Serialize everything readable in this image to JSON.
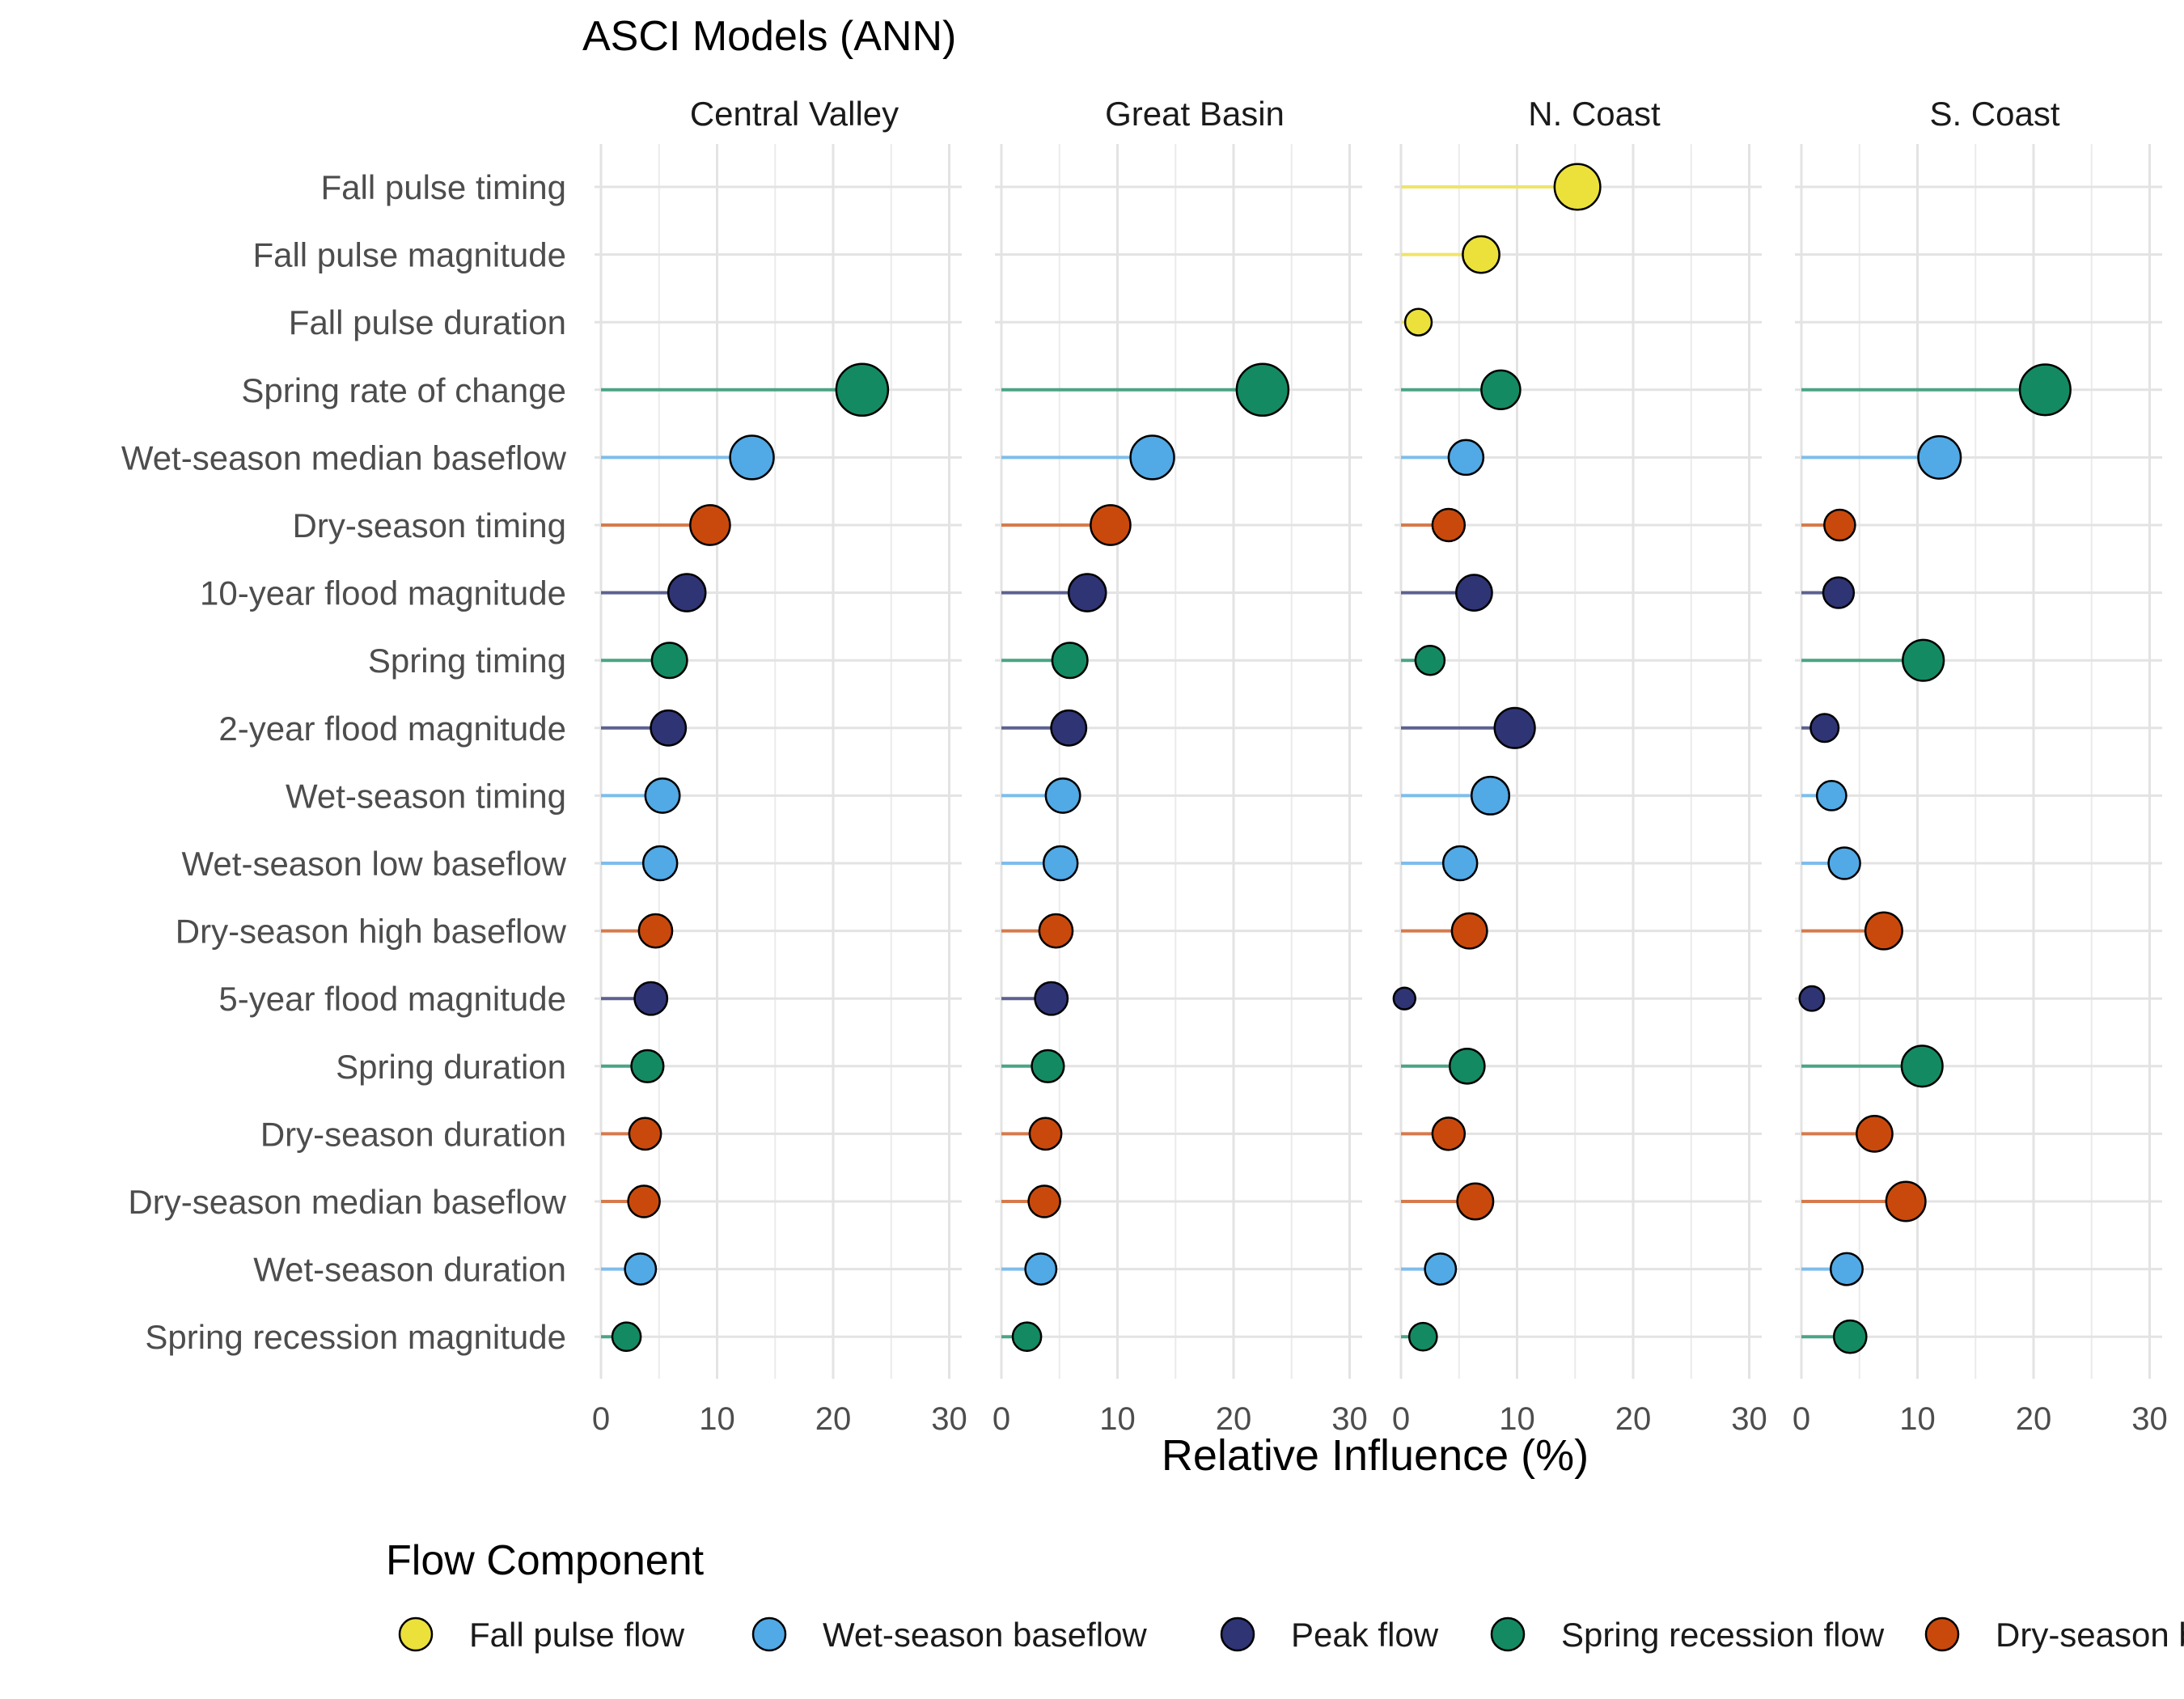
{
  "chart_data": {
    "type": "scatter",
    "subtype": "faceted lollipop",
    "title": "ASCI Models (ANN)",
    "xlabel": "Relative Influence (%)",
    "ylabel": "",
    "xlim": [
      0,
      31
    ],
    "x_ticks": [
      0,
      10,
      20,
      30
    ],
    "grid": true,
    "facets": [
      "Central Valley",
      "Great Basin",
      "N. Coast",
      "S. Coast"
    ],
    "metrics": [
      "Fall pulse timing",
      "Fall pulse magnitude",
      "Fall pulse duration",
      "Spring rate of change",
      "Wet-season median baseflow",
      "Dry-season timing",
      "10-year flood magnitude",
      "Spring timing",
      "2-year flood magnitude",
      "Wet-season timing",
      "Wet-season low baseflow",
      "Dry-season high baseflow",
      "5-year flood magnitude",
      "Spring duration",
      "Dry-season duration",
      "Dry-season median baseflow",
      "Wet-season duration",
      "Spring recession magnitude"
    ],
    "metric_component": [
      "Fall pulse flow",
      "Fall pulse flow",
      "Fall pulse flow",
      "Spring recession flow",
      "Wet-season baseflow",
      "Dry-season baseflow",
      "Peak flow",
      "Spring recession flow",
      "Peak flow",
      "Wet-season baseflow",
      "Wet-season baseflow",
      "Dry-season baseflow",
      "Peak flow",
      "Spring recession flow",
      "Dry-season baseflow",
      "Dry-season baseflow",
      "Wet-season baseflow",
      "Spring recession flow"
    ],
    "values": {
      "Central Valley": [
        null,
        null,
        null,
        22.5,
        13.0,
        9.4,
        7.4,
        5.9,
        5.8,
        5.3,
        5.1,
        4.7,
        4.3,
        4.0,
        3.8,
        3.7,
        3.4,
        2.2
      ],
      "Great Basin": [
        null,
        null,
        null,
        22.5,
        13.0,
        9.4,
        7.4,
        5.9,
        5.8,
        5.3,
        5.1,
        4.7,
        4.3,
        4.0,
        3.8,
        3.7,
        3.4,
        2.2
      ],
      "N. Coast": [
        15.2,
        6.9,
        1.5,
        8.6,
        5.6,
        4.1,
        6.3,
        2.5,
        9.8,
        7.7,
        5.1,
        5.9,
        0.3,
        5.7,
        4.1,
        6.4,
        3.4,
        1.9
      ],
      "S. Coast": [
        null,
        null,
        null,
        21.0,
        11.9,
        3.3,
        3.2,
        10.5,
        2.0,
        2.6,
        3.7,
        7.1,
        0.9,
        10.4,
        6.3,
        9.0,
        3.9,
        4.2
      ]
    },
    "legend": {
      "title": "Flow Component",
      "placement": "bottom",
      "entries": [
        {
          "name": "Fall pulse flow",
          "color": "#ECE13B",
          "line_color": "#F0E469"
        },
        {
          "name": "Wet-season baseflow",
          "color": "#51A9E5",
          "line_color": "#7DBDEB"
        },
        {
          "name": "Peak flow",
          "color": "#2E3474",
          "line_color": "#5C6190"
        },
        {
          "name": "Spring recession flow",
          "color": "#148A62",
          "line_color": "#4AA584"
        },
        {
          "name": "Dry-season baseflow",
          "color": "#C9490C",
          "line_color": "#D67A4C"
        }
      ]
    }
  }
}
